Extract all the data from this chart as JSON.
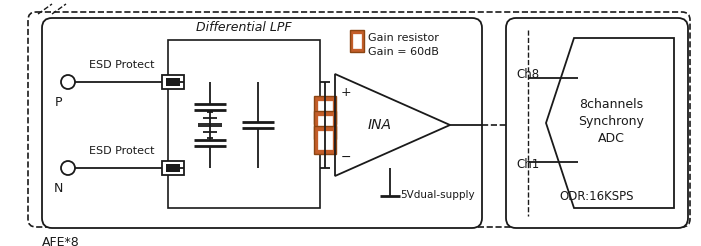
{
  "fig_width": 7.01,
  "fig_height": 2.46,
  "dpi": 100,
  "bg_color": "#ffffff",
  "line_color": "#1a1a1a",
  "brown_color": "#8B4513",
  "brown_fill": "#C45E2A",
  "labels": {
    "afe": "AFE*8",
    "lpf": "Differential LPF",
    "gain_resistor": "Gain resistor",
    "gain_value": "Gain = 60dB",
    "ina": "INA",
    "supply": "5Vdual-supply",
    "esd_top": "ESD Protect",
    "esd_bot": "ESD Protect",
    "P": "P",
    "N": "N",
    "Ch8": "Ch8",
    "Ch1": "Ch1",
    "adc_line1": "8channels",
    "adc_line2": "Synchrony",
    "adc_line3": "ADC",
    "odr": "ODR:16KSPS"
  }
}
